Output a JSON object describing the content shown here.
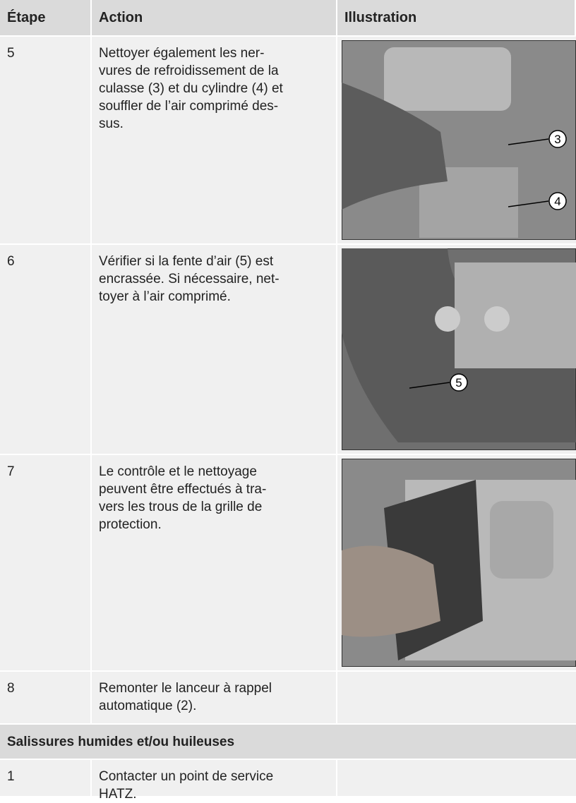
{
  "table": {
    "header": [
      "Étape",
      "Action",
      "Illustration"
    ],
    "rows": [
      {
        "step": "5",
        "action": [
          "Nettoyer également les ner-",
          "vures de refroidissement de la",
          "culasse (3) et du cylindre (4) et",
          "souffler de l’air comprimé des-",
          "sus."
        ],
        "callouts": [
          "3",
          "4"
        ]
      },
      {
        "step": "6",
        "action": [
          "Vérifier si la fente d’air (5) est",
          "encrassée. Si nécessaire, net-",
          "toyer à l’air comprimé."
        ],
        "callouts": [
          "5"
        ]
      },
      {
        "step": "7",
        "action": [
          "Le contrôle et le nettoyage",
          "peuvent être effectués à tra-",
          "vers les trous de la grille de",
          "protection."
        ],
        "callouts": []
      },
      {
        "step": "8",
        "action": [
          "Remonter le lanceur à rappel",
          "automatique (2)."
        ],
        "callouts": []
      }
    ],
    "section": "Salissures humides et/ou huileuses",
    "section_rows": [
      {
        "step": "1",
        "action": [
          "Contacter un point de service",
          "HATZ."
        ]
      }
    ]
  }
}
